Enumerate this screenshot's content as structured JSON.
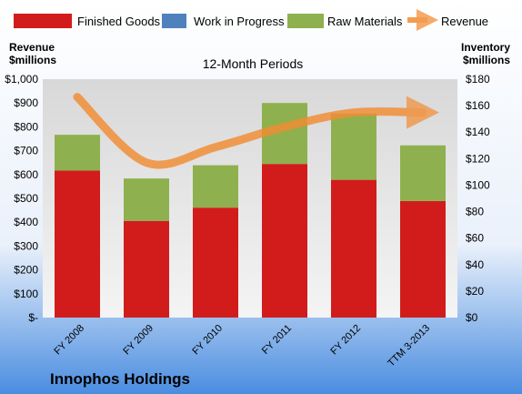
{
  "chart_data": {
    "type": "bar",
    "title": "12-Month Periods",
    "footer_title": "Innophos Holdings",
    "categories": [
      "FY 2008",
      "FY 2009",
      "FY 2010",
      "FY 2011",
      "FY 2012",
      "TTM 3-2013"
    ],
    "left_axis": {
      "label_line1": "Revenue",
      "label_line2": "$millions",
      "range": [
        0,
        1000
      ],
      "ticks": [
        0,
        100,
        200,
        300,
        400,
        500,
        600,
        700,
        800,
        900,
        1000
      ],
      "tick_labels": [
        "$-",
        "$100",
        "$200",
        "$300",
        "$400",
        "$500",
        "$600",
        "$700",
        "$800",
        "$900",
        "$1,000"
      ]
    },
    "right_axis": {
      "label_line1": "Inventory",
      "label_line2": "$millions",
      "range": [
        0,
        180
      ],
      "ticks": [
        0,
        20,
        40,
        60,
        80,
        100,
        120,
        140,
        160,
        180
      ],
      "tick_labels": [
        "$0",
        "$20",
        "$40",
        "$60",
        "$80",
        "$100",
        "$120",
        "$140",
        "$160",
        "$180"
      ]
    },
    "series": [
      {
        "name": "Finished Goods",
        "kind": "bar",
        "axis": "right",
        "color": "#d21c1c",
        "values": [
          111,
          73,
          83,
          116,
          104,
          88
        ]
      },
      {
        "name": "Work in Progress",
        "kind": "bar",
        "axis": "right",
        "color": "#4f81bd",
        "values": [
          0,
          0,
          0,
          0,
          0,
          0
        ]
      },
      {
        "name": "Raw Materials",
        "kind": "bar",
        "axis": "right",
        "color": "#8fb04e",
        "values": [
          27,
          32,
          32,
          46,
          50,
          42
        ]
      },
      {
        "name": "Revenue",
        "kind": "line",
        "axis": "left",
        "color": "#f28c33",
        "values": [
          925,
          650,
          715,
          800,
          860,
          860
        ]
      }
    ],
    "legend_position": "top",
    "grid": false
  }
}
